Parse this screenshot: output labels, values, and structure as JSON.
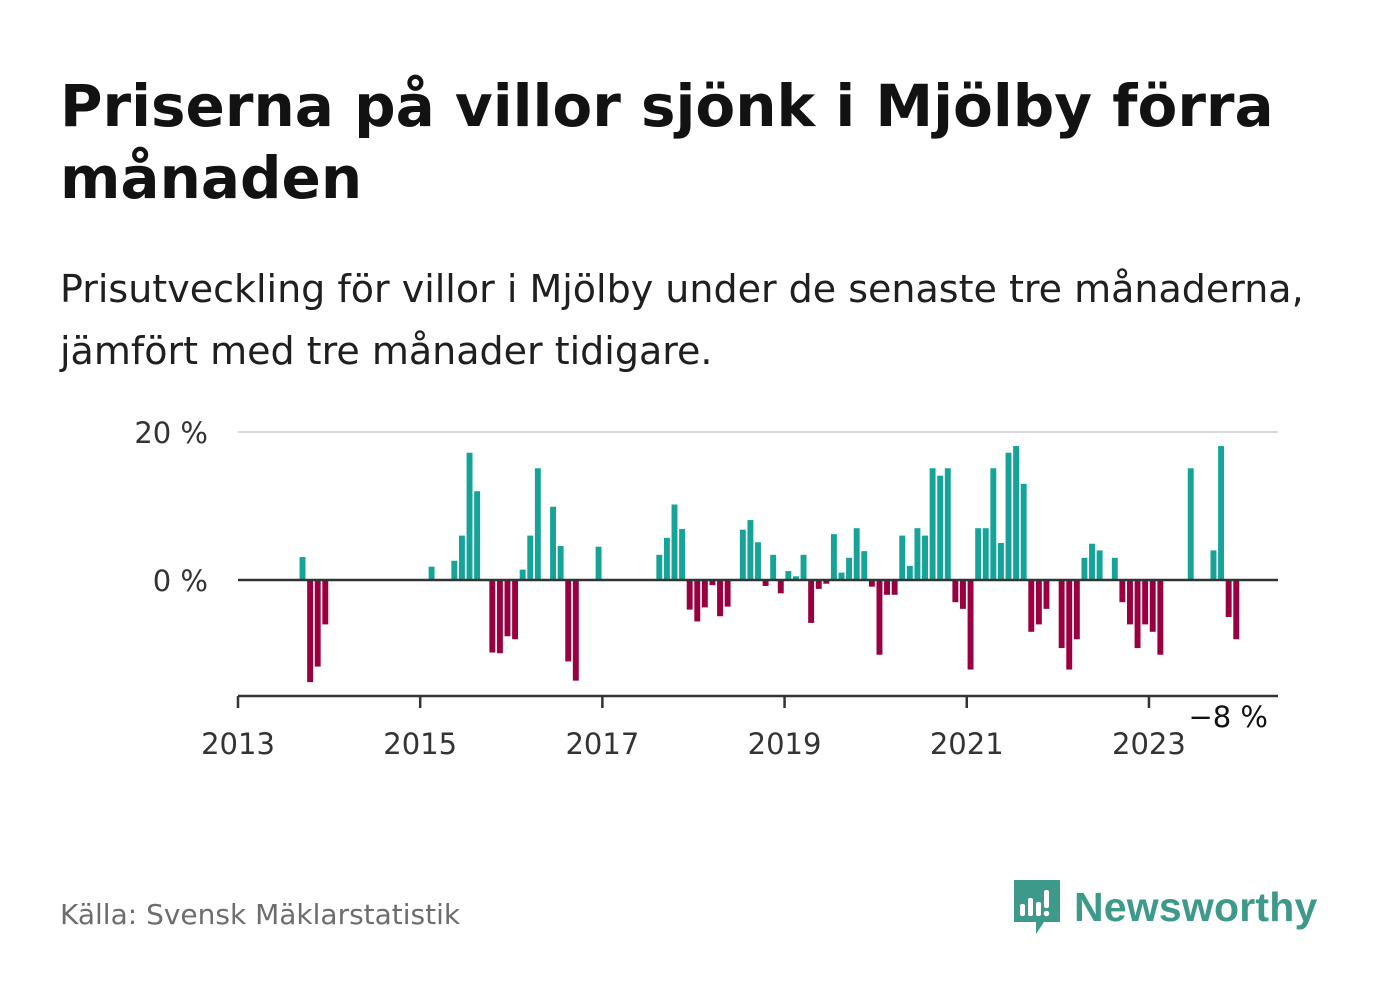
{
  "title": "Priserna på villor sjönk i Mjölby förra månaden",
  "subtitle": "Prisutveckling för villor i Mjölby under de senaste tre månaderna, jämfört med tre månader tidigare.",
  "source": "Källa: Svensk Mäklarstatistik",
  "brand": "Newsworthy",
  "colors": {
    "positive": "#16a398",
    "negative": "#99003f",
    "axis": "#333333",
    "grid": "#d9d9d9",
    "brand": "#3d9a8b"
  },
  "chart_data": {
    "type": "bar",
    "ylabel": "",
    "ylim": [
      -16,
      20
    ],
    "yticks": [
      0,
      20
    ],
    "ytick_labels": [
      "0 %",
      "20 %"
    ],
    "xlim": [
      "2013-01",
      "2024-06"
    ],
    "xticks": [
      "2013-01",
      "2015-01",
      "2017-01",
      "2019-01",
      "2021-01",
      "2023-01"
    ],
    "xtick_labels": [
      "2013",
      "2015",
      "2017",
      "2019",
      "2021",
      "2023"
    ],
    "last_value_label": "−8 %",
    "grid": true,
    "series": [
      {
        "values": [
          {
            "x": "2013-09",
            "y": 3.1
          },
          {
            "x": "2013-10",
            "y": -13.8
          },
          {
            "x": "2013-11",
            "y": -11.7
          },
          {
            "x": "2013-12",
            "y": -6.0
          },
          {
            "x": "2015-02",
            "y": 1.8
          },
          {
            "x": "2015-05",
            "y": 2.6
          },
          {
            "x": "2015-06",
            "y": 6.0
          },
          {
            "x": "2015-07",
            "y": 17.2
          },
          {
            "x": "2015-08",
            "y": 12.0
          },
          {
            "x": "2015-10",
            "y": -9.8
          },
          {
            "x": "2015-11",
            "y": -9.9
          },
          {
            "x": "2015-12",
            "y": -7.6
          },
          {
            "x": "2016-01",
            "y": -8.0
          },
          {
            "x": "2016-02",
            "y": 1.4
          },
          {
            "x": "2016-03",
            "y": 6.0
          },
          {
            "x": "2016-04",
            "y": 15.1
          },
          {
            "x": "2016-06",
            "y": 9.9
          },
          {
            "x": "2016-07",
            "y": 4.6
          },
          {
            "x": "2016-08",
            "y": -11.0
          },
          {
            "x": "2016-09",
            "y": -13.6
          },
          {
            "x": "2016-12",
            "y": 4.5
          },
          {
            "x": "2017-08",
            "y": 3.4
          },
          {
            "x": "2017-09",
            "y": 5.7
          },
          {
            "x": "2017-10",
            "y": 10.2
          },
          {
            "x": "2017-11",
            "y": 6.9
          },
          {
            "x": "2017-12",
            "y": -4.0
          },
          {
            "x": "2018-01",
            "y": -5.6
          },
          {
            "x": "2018-02",
            "y": -3.7
          },
          {
            "x": "2018-03",
            "y": -0.7
          },
          {
            "x": "2018-04",
            "y": -4.9
          },
          {
            "x": "2018-05",
            "y": -3.6
          },
          {
            "x": "2018-07",
            "y": 6.8
          },
          {
            "x": "2018-08",
            "y": 8.1
          },
          {
            "x": "2018-09",
            "y": 5.1
          },
          {
            "x": "2018-10",
            "y": -0.8
          },
          {
            "x": "2018-11",
            "y": 3.4
          },
          {
            "x": "2018-12",
            "y": -1.8
          },
          {
            "x": "2019-01",
            "y": 1.2
          },
          {
            "x": "2019-02",
            "y": 0.5
          },
          {
            "x": "2019-03",
            "y": 3.4
          },
          {
            "x": "2019-04",
            "y": -5.8
          },
          {
            "x": "2019-05",
            "y": -1.2
          },
          {
            "x": "2019-06",
            "y": -0.5
          },
          {
            "x": "2019-07",
            "y": 6.2
          },
          {
            "x": "2019-08",
            "y": 1.0
          },
          {
            "x": "2019-09",
            "y": 3.0
          },
          {
            "x": "2019-10",
            "y": 7.0
          },
          {
            "x": "2019-11",
            "y": 3.9
          },
          {
            "x": "2019-12",
            "y": -0.9
          },
          {
            "x": "2020-01",
            "y": -10.1
          },
          {
            "x": "2020-02",
            "y": -2.0
          },
          {
            "x": "2020-03",
            "y": -2.0
          },
          {
            "x": "2020-04",
            "y": 6.0
          },
          {
            "x": "2020-05",
            "y": 1.9
          },
          {
            "x": "2020-06",
            "y": 7.0
          },
          {
            "x": "2020-07",
            "y": 6.0
          },
          {
            "x": "2020-08",
            "y": 15.1
          },
          {
            "x": "2020-09",
            "y": 14.1
          },
          {
            "x": "2020-10",
            "y": 15.1
          },
          {
            "x": "2020-11",
            "y": -3.0
          },
          {
            "x": "2020-12",
            "y": -3.9
          },
          {
            "x": "2021-01",
            "y": -12.1
          },
          {
            "x": "2021-02",
            "y": 7.0
          },
          {
            "x": "2021-03",
            "y": 7.0
          },
          {
            "x": "2021-04",
            "y": 15.1
          },
          {
            "x": "2021-05",
            "y": 5.0
          },
          {
            "x": "2021-06",
            "y": 17.2
          },
          {
            "x": "2021-07",
            "y": 18.1
          },
          {
            "x": "2021-08",
            "y": 13.0
          },
          {
            "x": "2021-09",
            "y": -7.0
          },
          {
            "x": "2021-10",
            "y": -6.0
          },
          {
            "x": "2021-11",
            "y": -3.9
          },
          {
            "x": "2022-01",
            "y": -9.2
          },
          {
            "x": "2022-02",
            "y": -12.1
          },
          {
            "x": "2022-03",
            "y": -8.0
          },
          {
            "x": "2022-04",
            "y": 3.0
          },
          {
            "x": "2022-05",
            "y": 4.9
          },
          {
            "x": "2022-06",
            "y": 4.0
          },
          {
            "x": "2022-08",
            "y": 3.0
          },
          {
            "x": "2022-09",
            "y": -3.0
          },
          {
            "x": "2022-10",
            "y": -6.0
          },
          {
            "x": "2022-11",
            "y": -9.2
          },
          {
            "x": "2022-12",
            "y": -6.0
          },
          {
            "x": "2023-01",
            "y": -7.0
          },
          {
            "x": "2023-02",
            "y": -10.1
          },
          {
            "x": "2023-06",
            "y": 15.1
          },
          {
            "x": "2023-09",
            "y": 4.0
          },
          {
            "x": "2023-10",
            "y": 18.1
          },
          {
            "x": "2023-11",
            "y": -5.0
          },
          {
            "x": "2023-12",
            "y": -8.0
          }
        ]
      }
    ]
  }
}
